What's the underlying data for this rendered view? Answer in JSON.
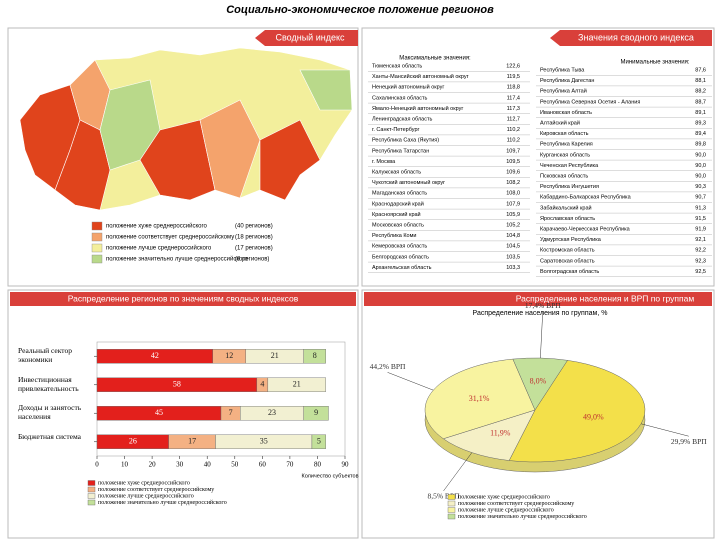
{
  "title": "Социально-экономическое положение регионов",
  "map_panel": {
    "tab": "Сводный индекс",
    "legend": [
      {
        "label": "положение хуже среднероссийского",
        "count": "(40 регионов)",
        "color": "#e0441c"
      },
      {
        "label": "положение соответствует среднероссийскому",
        "count": "(18 регионов)",
        "color": "#f4a36c"
      },
      {
        "label": "положение лучше среднероссийского",
        "count": "(17 регионов)",
        "color": "#f3ef9c"
      },
      {
        "label": "положение значительно лучше среднероссийского",
        "count": "(8 регионов)",
        "color": "#b9d98a"
      }
    ]
  },
  "index_panel": {
    "tab": "Значения сводного индекса",
    "max_header": "Максимальные значения:",
    "min_header": "Минимальные значения:",
    "max_rows": [
      [
        "Тюменская область",
        "122,6"
      ],
      [
        "Ханты-Мансийский автономный округ",
        "119,5"
      ],
      [
        "Ненецкий автономный округ",
        "118,8"
      ],
      [
        "Сахалинская область",
        "117,4"
      ],
      [
        "Ямало-Ненецкий автономный округ",
        "117,3"
      ],
      [
        "Ленинградская область",
        "112,7"
      ],
      [
        "г. Санкт-Петербург",
        "110,2"
      ],
      [
        "Республика Саха (Якутия)",
        "110,2"
      ],
      [
        "Республика Татарстан",
        "109,7"
      ],
      [
        "г. Москва",
        "109,5"
      ],
      [
        "Калужская область",
        "109,6"
      ],
      [
        "Чукотский автономный округ",
        "108,2"
      ],
      [
        "Магаданская область",
        "108,0"
      ],
      [
        "Краснодарский край",
        "107,9"
      ],
      [
        "Красноярский край",
        "105,9"
      ],
      [
        "Московская область",
        "105,2"
      ],
      [
        "Республика Коми",
        "104,8"
      ],
      [
        "Кемеровская область",
        "104,5"
      ],
      [
        "Белгородская область",
        "103,5"
      ],
      [
        "Архангельская область",
        "103,3"
      ]
    ],
    "min_rows": [
      [
        "Республика Тыва",
        "87,6"
      ],
      [
        "Республика Дагестан",
        "88,1"
      ],
      [
        "Республика Алтай",
        "88,2"
      ],
      [
        "Республика Северная Осетия - Алания",
        "88,7"
      ],
      [
        "Ивановская область",
        "89,1"
      ],
      [
        "Алтайский край",
        "89,3"
      ],
      [
        "Кировская область",
        "89,4"
      ],
      [
        "Республика Карелия",
        "89,8"
      ],
      [
        "Курганская область",
        "90,0"
      ],
      [
        "Чеченская Республика",
        "90,0"
      ],
      [
        "Псковская область",
        "90,0"
      ],
      [
        "Республика Ингушетия",
        "90,3"
      ],
      [
        "Кабардино-Балкарская Республика",
        "90,7"
      ],
      [
        "Забайкальский край",
        "91,3"
      ],
      [
        "Ярославская область",
        "91,5"
      ],
      [
        "Карачаево-Черкесская Республика",
        "91,9"
      ],
      [
        "Удмуртская Республика",
        "92,1"
      ],
      [
        "Костромская область",
        "92,2"
      ],
      [
        "Саратовская область",
        "92,3"
      ],
      [
        "Волгоградская область",
        "92,5"
      ]
    ]
  },
  "bar_panel": {
    "tab": "Распределение регионов по значениям сводных индексов",
    "chart": {
      "type": "bar",
      "stacked": true,
      "orientation": "horizontal",
      "categories": [
        "Реальный сектор экономики",
        "Инвестиционная привлекательность",
        "Доходы и занятость населения",
        "Бюджетная система"
      ],
      "series": [
        {
          "name": "положение хуже среднероссийского",
          "color": "#e3201c",
          "values": [
            42,
            58,
            45,
            26
          ]
        },
        {
          "name": "положение соответствует среднероссийскому",
          "color": "#f4b183",
          "values": [
            12,
            4,
            7,
            17
          ]
        },
        {
          "name": "положение лучше среднероссийского",
          "color": "#f2f0d2",
          "values": [
            21,
            21,
            23,
            35
          ]
        },
        {
          "name": "положение значительно лучше среднероссийского",
          "color": "#c3e09a",
          "values": [
            8,
            null,
            9,
            5
          ]
        }
      ],
      "xlim": [
        0,
        90
      ],
      "xticks": [
        0,
        10,
        20,
        30,
        40,
        50,
        60,
        70,
        80,
        90
      ],
      "x_label": "Количество субъектов"
    }
  },
  "pie_panel": {
    "tab": "Распределение населения и ВРП по группам",
    "chart": {
      "type": "pie",
      "title": "Распределение населения по группам, %",
      "categories": [
        "положение хуже среднероссийского",
        "положение соответствует среднероссийскому",
        "положение лучше среднероссийского",
        "положение значительно лучше среднероссийского"
      ],
      "values": [
        49.0,
        11.9,
        31.1,
        8.0
      ],
      "value_labels": [
        "49,0%",
        "11,9%",
        "31,1%",
        "8,0%"
      ],
      "colors": [
        "#f3e04a",
        "#f5f0c6",
        "#f8f3a0",
        "#c3e09a"
      ],
      "annotations": [
        "29,9% ВРП",
        "8,5% ВРП",
        "44,2% ВРП",
        "17,4% ВРП"
      ]
    }
  }
}
